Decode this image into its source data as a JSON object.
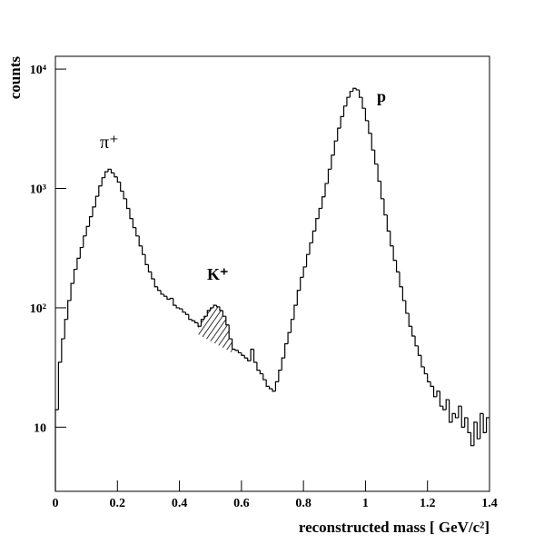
{
  "chart_data": {
    "type": "histogram",
    "xlabel": "reconstructed mass  [ GeV/c²]",
    "ylabel": "counts",
    "annotations": [
      "π⁺",
      "K⁺",
      "p"
    ],
    "log_y": true,
    "color": "#000000",
    "xlim": [
      0,
      1.4
    ],
    "ylim": [
      2.9,
      12800
    ],
    "xticks": [
      0,
      0.2,
      0.4,
      0.6,
      0.8,
      1,
      1.2,
      1.4
    ],
    "yticks": [
      10,
      {
        "value": 100,
        "label": "10²"
      },
      {
        "value": 1000,
        "label": "10³"
      },
      {
        "value": 10000,
        "label": "10⁴"
      }
    ],
    "bins": [
      0,
      0.01,
      0.02,
      0.03,
      0.04,
      0.05,
      0.06,
      0.07,
      0.08,
      0.09,
      0.1,
      0.11,
      0.12,
      0.13,
      0.14,
      0.15,
      0.16,
      0.17,
      0.18,
      0.19,
      0.2,
      0.21,
      0.22,
      0.23,
      0.24,
      0.25,
      0.26,
      0.27,
      0.28,
      0.29,
      0.3,
      0.31,
      0.32,
      0.33,
      0.34,
      0.35,
      0.36,
      0.37,
      0.38,
      0.39,
      0.4,
      0.41,
      0.42,
      0.43,
      0.44,
      0.45,
      0.46,
      0.47,
      0.48,
      0.49,
      0.5,
      0.51,
      0.52,
      0.53,
      0.54,
      0.55,
      0.56,
      0.57,
      0.58,
      0.59,
      0.6,
      0.61,
      0.62,
      0.63,
      0.64,
      0.65,
      0.66,
      0.67,
      0.68,
      0.69,
      0.7,
      0.71,
      0.72,
      0.73,
      0.74,
      0.75,
      0.76,
      0.77,
      0.78,
      0.79,
      0.8,
      0.81,
      0.82,
      0.83,
      0.84,
      0.85,
      0.86,
      0.87,
      0.88,
      0.89,
      0.9,
      0.91,
      0.92,
      0.93,
      0.94,
      0.95,
      0.96,
      0.97,
      0.98,
      0.99,
      1,
      1.01,
      1.02,
      1.03,
      1.04,
      1.05,
      1.06,
      1.07,
      1.08,
      1.09,
      1.1,
      1.11,
      1.12,
      1.13,
      1.14,
      1.15,
      1.16,
      1.17,
      1.18,
      1.19,
      1.2,
      1.21,
      1.22,
      1.23,
      1.24,
      1.25,
      1.26,
      1.27,
      1.28,
      1.29,
      1.3,
      1.31,
      1.32,
      1.33,
      1.34,
      1.35,
      1.36,
      1.37,
      1.38,
      1.39,
      1.4
    ],
    "values": [
      14,
      35,
      55,
      80,
      115,
      160,
      210,
      260,
      320,
      400,
      480,
      580,
      700,
      860,
      1050,
      1230,
      1380,
      1450,
      1350,
      1250,
      1130,
      950,
      820,
      680,
      560,
      470,
      400,
      330,
      280,
      230,
      200,
      175,
      150,
      140,
      130,
      125,
      118,
      120,
      105,
      100,
      98,
      92,
      88,
      80,
      78,
      75,
      70,
      80,
      85,
      95,
      100,
      105,
      102,
      95,
      85,
      72,
      55,
      45,
      44,
      42,
      40,
      38,
      36,
      45,
      35,
      30,
      28,
      25,
      22,
      21,
      20,
      24,
      30,
      38,
      50,
      62,
      80,
      105,
      140,
      180,
      220,
      280,
      350,
      440,
      560,
      680,
      850,
      1100,
      1450,
      1900,
      2500,
      3200,
      4000,
      4900,
      5800,
      6500,
      6900,
      6700,
      5800,
      4700,
      3700,
      2900,
      2100,
      1600,
      1150,
      820,
      600,
      440,
      330,
      250,
      200,
      150,
      115,
      90,
      70,
      58,
      48,
      40,
      32,
      28,
      24,
      22,
      18,
      20,
      15,
      14,
      17,
      11,
      13,
      12,
      15,
      10,
      12,
      9,
      7,
      11,
      8,
      13,
      9,
      12
    ],
    "background": {
      "x": [
        0.46,
        0.57
      ],
      "values": [
        60,
        42
      ]
    }
  }
}
